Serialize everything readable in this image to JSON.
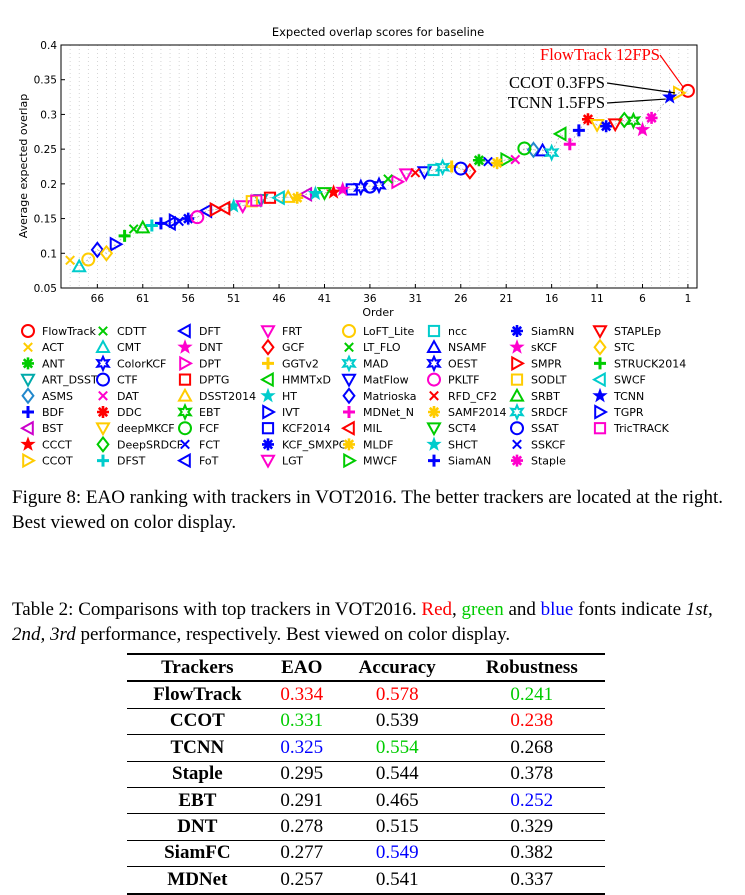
{
  "chart_data": {
    "type": "scatter",
    "title": "Expected overlap scores for baseline",
    "xlabel": "Order",
    "ylabel": "Average expected overlap",
    "ylim": [
      0.05,
      0.4
    ],
    "xlim": [
      70,
      0
    ],
    "x_ticks": [
      "66",
      "61",
      "56",
      "51",
      "46",
      "41",
      "36",
      "31",
      "26",
      "21",
      "16",
      "11",
      "6",
      "1"
    ],
    "y_ticks": [
      "0.05",
      "0.1",
      "0.15",
      "0.2",
      "0.25",
      "0.3",
      "0.35",
      "0.4"
    ],
    "grid": "dotted vertical lines",
    "x_reversed": true,
    "series": [
      {
        "name": "FlowTrack",
        "color": "#ff0000",
        "marker": "o",
        "x": 1,
        "y": 0.334
      },
      {
        "name": "ACT",
        "color": "#ffcc00",
        "marker": "x",
        "x": 69,
        "y": 0.09
      },
      {
        "name": "ANT",
        "color": "#00cc00",
        "marker": "*",
        "x": 24,
        "y": 0.234
      },
      {
        "name": "ART_DSST",
        "color": "#00aaaa",
        "marker": "v",
        "x": 48,
        "y": 0.177
      },
      {
        "name": "ASMS",
        "color": "#2288cc",
        "marker": "d",
        "x": 18,
        "y": 0.249
      },
      {
        "name": "BDF",
        "color": "#0000ff",
        "marker": "+",
        "x": 59,
        "y": 0.143
      },
      {
        "name": "BST",
        "color": "#cc00cc",
        "marker": "<",
        "x": 43,
        "y": 0.185
      },
      {
        "name": "CCCT",
        "color": "#ff0000",
        "marker": "p",
        "x": 40,
        "y": 0.188
      },
      {
        "name": "CCOT",
        "color": "#ffcc00",
        "marker": ">",
        "x": 2,
        "y": 0.331
      },
      {
        "name": "CDTT",
        "color": "#00cc00",
        "marker": "x",
        "x": 62,
        "y": 0.135
      },
      {
        "name": "CMT",
        "color": "#00cccc",
        "marker": "^",
        "x": 68,
        "y": 0.081
      },
      {
        "name": "ColorKCF",
        "color": "#0000ff",
        "marker": "h",
        "x": 35,
        "y": 0.198
      },
      {
        "name": "CTF",
        "color": "#0000ff",
        "marker": "o",
        "x": 36,
        "y": 0.196
      },
      {
        "name": "DAT",
        "color": "#ff00cc",
        "marker": "x",
        "x": 20,
        "y": 0.235
      },
      {
        "name": "DDC",
        "color": "#ff0000",
        "marker": "*",
        "x": 12,
        "y": 0.293
      },
      {
        "name": "deepMKCF",
        "color": "#ffcc00",
        "marker": "v",
        "x": 11,
        "y": 0.285
      },
      {
        "name": "DeepSRDCF",
        "color": "#00cc00",
        "marker": "d",
        "x": 8,
        "y": 0.292
      },
      {
        "name": "DFST",
        "color": "#00cccc",
        "marker": "+",
        "x": 60,
        "y": 0.14
      },
      {
        "name": "DFT",
        "color": "#0000ff",
        "marker": "<",
        "x": 58,
        "y": 0.143
      },
      {
        "name": "DNT",
        "color": "#ff00cc",
        "marker": "p",
        "x": 6,
        "y": 0.278
      },
      {
        "name": "DPT",
        "color": "#ff00cc",
        "marker": ">",
        "x": 33,
        "y": 0.203
      },
      {
        "name": "DPTG",
        "color": "#ff0000",
        "marker": "s",
        "x": 47,
        "y": 0.18
      },
      {
        "name": "DSST2014",
        "color": "#ffcc00",
        "marker": "^",
        "x": 45,
        "y": 0.181
      },
      {
        "name": "EBT",
        "color": "#00cc00",
        "marker": "h",
        "x": 7,
        "y": 0.291
      },
      {
        "name": "FCF",
        "color": "#00cc00",
        "marker": "o",
        "x": 19,
        "y": 0.251
      },
      {
        "name": "FCT",
        "color": "#0000ff",
        "marker": "x",
        "x": 57,
        "y": 0.146
      },
      {
        "name": "FoT",
        "color": "#0000ff",
        "marker": "<",
        "x": 54,
        "y": 0.161
      },
      {
        "name": "FRT",
        "color": "#ff00cc",
        "marker": "v",
        "x": 32,
        "y": 0.214
      },
      {
        "name": "GCF",
        "color": "#ff0000",
        "marker": "d",
        "x": 25,
        "y": 0.218
      },
      {
        "name": "GGTv2",
        "color": "#ffcc00",
        "marker": "+",
        "x": 27,
        "y": 0.225
      },
      {
        "name": "HMMTxD",
        "color": "#00cc00",
        "marker": "<",
        "x": 15,
        "y": 0.272
      },
      {
        "name": "HT",
        "color": "#00cccc",
        "marker": "p",
        "x": 51,
        "y": 0.168
      },
      {
        "name": "IVT",
        "color": "#0000ff",
        "marker": ">",
        "x": 64,
        "y": 0.113
      },
      {
        "name": "KCF2014",
        "color": "#0000ff",
        "marker": "s",
        "x": 38,
        "y": 0.192
      },
      {
        "name": "KCF_SMXPC",
        "color": "#0000ff",
        "marker": "*",
        "x": 56,
        "y": 0.15
      },
      {
        "name": "LGT",
        "color": "#ff00cc",
        "marker": "v",
        "x": 50,
        "y": 0.168
      },
      {
        "name": "LoFT_Lite",
        "color": "#ffcc00",
        "marker": "o",
        "x": 67,
        "y": 0.091
      },
      {
        "name": "LT_FLO",
        "color": "#00cc00",
        "marker": "x",
        "x": 34,
        "y": 0.207
      },
      {
        "name": "MAD",
        "color": "#00cccc",
        "marker": "h",
        "x": 28,
        "y": 0.224
      },
      {
        "name": "MatFlow",
        "color": "#0000ff",
        "marker": "v",
        "x": 30,
        "y": 0.217
      },
      {
        "name": "Matrioska",
        "color": "#0000ff",
        "marker": "d",
        "x": 66,
        "y": 0.105
      },
      {
        "name": "MDNet_N",
        "color": "#ff00cc",
        "marker": "+",
        "x": 14,
        "y": 0.257
      },
      {
        "name": "MIL",
        "color": "#ff0000",
        "marker": "<",
        "x": 52,
        "y": 0.165
      },
      {
        "name": "MLDF",
        "color": "#ffcc00",
        "marker": "*",
        "x": 44,
        "y": 0.18
      },
      {
        "name": "MWCF",
        "color": "#00cc00",
        "marker": ">",
        "x": 21,
        "y": 0.235
      },
      {
        "name": "ncc",
        "color": "#00cccc",
        "marker": "s",
        "x": 29,
        "y": 0.22
      },
      {
        "name": "NSAMF",
        "color": "#0000ff",
        "marker": "^",
        "x": 17,
        "y": 0.248
      },
      {
        "name": "OEST",
        "color": "#0000ff",
        "marker": "h",
        "x": 37,
        "y": 0.195
      },
      {
        "name": "PKLTF",
        "color": "#ff00cc",
        "marker": "o",
        "x": 55,
        "y": 0.152
      },
      {
        "name": "RFD_CF2",
        "color": "#ff0000",
        "marker": "x",
        "x": 31,
        "y": 0.216
      },
      {
        "name": "SAMF2014",
        "color": "#ffcc00",
        "marker": "*",
        "x": 22,
        "y": 0.23
      },
      {
        "name": "SCT4",
        "color": "#00cc00",
        "marker": "v",
        "x": 41,
        "y": 0.187
      },
      {
        "name": "SHCT",
        "color": "#00cccc",
        "marker": "p",
        "x": 42,
        "y": 0.186
      },
      {
        "name": "SiamAN",
        "color": "#0000ff",
        "marker": "+",
        "x": 13,
        "y": 0.277
      },
      {
        "name": "SiamRN",
        "color": "#0000ff",
        "marker": "*",
        "x": 10,
        "y": 0.283
      },
      {
        "name": "sKCF",
        "color": "#ff00cc",
        "marker": "p",
        "x": 39,
        "y": 0.192
      },
      {
        "name": "SMPR",
        "color": "#ff0000",
        "marker": ">",
        "x": 53,
        "y": 0.163
      },
      {
        "name": "SODLT",
        "color": "#ffcc00",
        "marker": "s",
        "x": 49,
        "y": 0.175
      },
      {
        "name": "SRBT",
        "color": "#00cc00",
        "marker": "^",
        "x": 61,
        "y": 0.137
      },
      {
        "name": "SRDCF",
        "color": "#00cccc",
        "marker": "h",
        "x": 16,
        "y": 0.245
      },
      {
        "name": "SSAT",
        "color": "#0000ff",
        "marker": "o",
        "x": 26,
        "y": 0.222
      },
      {
        "name": "SSKCF",
        "color": "#0000ff",
        "marker": "x",
        "x": 23,
        "y": 0.232
      },
      {
        "name": "Staple",
        "color": "#ff00cc",
        "marker": "*",
        "x": 5,
        "y": 0.295
      },
      {
        "name": "STAPLEp",
        "color": "#ff0000",
        "marker": "v",
        "x": 9,
        "y": 0.286
      },
      {
        "name": "STC",
        "color": "#ffcc00",
        "marker": "d",
        "x": 65,
        "y": 0.1
      },
      {
        "name": "STRUCK2014",
        "color": "#00cc00",
        "marker": "+",
        "x": 63,
        "y": 0.125
      },
      {
        "name": "SWCF",
        "color": "#00cccc",
        "marker": "<",
        "x": 46,
        "y": 0.18
      },
      {
        "name": "TCNN",
        "color": "#0000ff",
        "marker": "p",
        "x": 3,
        "y": 0.325
      },
      {
        "name": "TGPR",
        "color": "#0000ff",
        "marker": ">",
        "x": 57.5,
        "y": 0.147
      },
      {
        "name": "TricTRACK",
        "color": "#ff00cc",
        "marker": "s",
        "x": 48.5,
        "y": 0.176
      }
    ],
    "annotations": [
      {
        "text": "FlowTrack  12FPS",
        "color": "#ff0000"
      },
      {
        "text": "CCOT  0.3FPS",
        "color": "#000000"
      },
      {
        "text": "TCNN  1.5FPS",
        "color": "#000000"
      }
    ]
  },
  "figure_caption": "Figure 8: EAO ranking with trackers in VOT2016. The better trackers are located at the right. Best viewed on color display.",
  "table_caption": {
    "prefix": "Table 2:  Comparisons with top trackers in VOT2016.",
    "red": "Red",
    "sep1": ", ",
    "green": "green",
    "and": " and ",
    "blue": "blue",
    "mid": " fonts indicate ",
    "ranks": "1st, 2nd, 3rd",
    "suffix": " performance, respectively. Best viewed on color display."
  },
  "table": {
    "headers": [
      "Trackers",
      "EAO",
      "Accuracy",
      "Robustness"
    ],
    "rows": [
      {
        "name": "FlowTrack",
        "eao": "0.334",
        "eao_color": "#ff0000",
        "acc": "0.578",
        "acc_color": "#ff0000",
        "rob": "0.241",
        "rob_color": "#00cc00"
      },
      {
        "name": "CCOT",
        "eao": "0.331",
        "eao_color": "#00cc00",
        "acc": "0.539",
        "acc_color": "#000000",
        "rob": "0.238",
        "rob_color": "#ff0000"
      },
      {
        "name": "TCNN",
        "eao": "0.325",
        "eao_color": "#0000ff",
        "acc": "0.554",
        "acc_color": "#00cc00",
        "rob": "0.268",
        "rob_color": "#000000"
      },
      {
        "name": "Staple",
        "eao": "0.295",
        "eao_color": "#000000",
        "acc": "0.544",
        "acc_color": "#000000",
        "rob": "0.378",
        "rob_color": "#000000"
      },
      {
        "name": "EBT",
        "eao": "0.291",
        "eao_color": "#000000",
        "acc": "0.465",
        "acc_color": "#000000",
        "rob": "0.252",
        "rob_color": "#0000ff"
      },
      {
        "name": "DNT",
        "eao": "0.278",
        "eao_color": "#000000",
        "acc": "0.515",
        "acc_color": "#000000",
        "rob": "0.329",
        "rob_color": "#000000"
      },
      {
        "name": "SiamFC",
        "eao": "0.277",
        "eao_color": "#000000",
        "acc": "0.549",
        "acc_color": "#0000ff",
        "rob": "0.382",
        "rob_color": "#000000"
      },
      {
        "name": "MDNet",
        "eao": "0.257",
        "eao_color": "#000000",
        "acc": "0.541",
        "acc_color": "#000000",
        "rob": "0.337",
        "rob_color": "#000000"
      }
    ]
  }
}
